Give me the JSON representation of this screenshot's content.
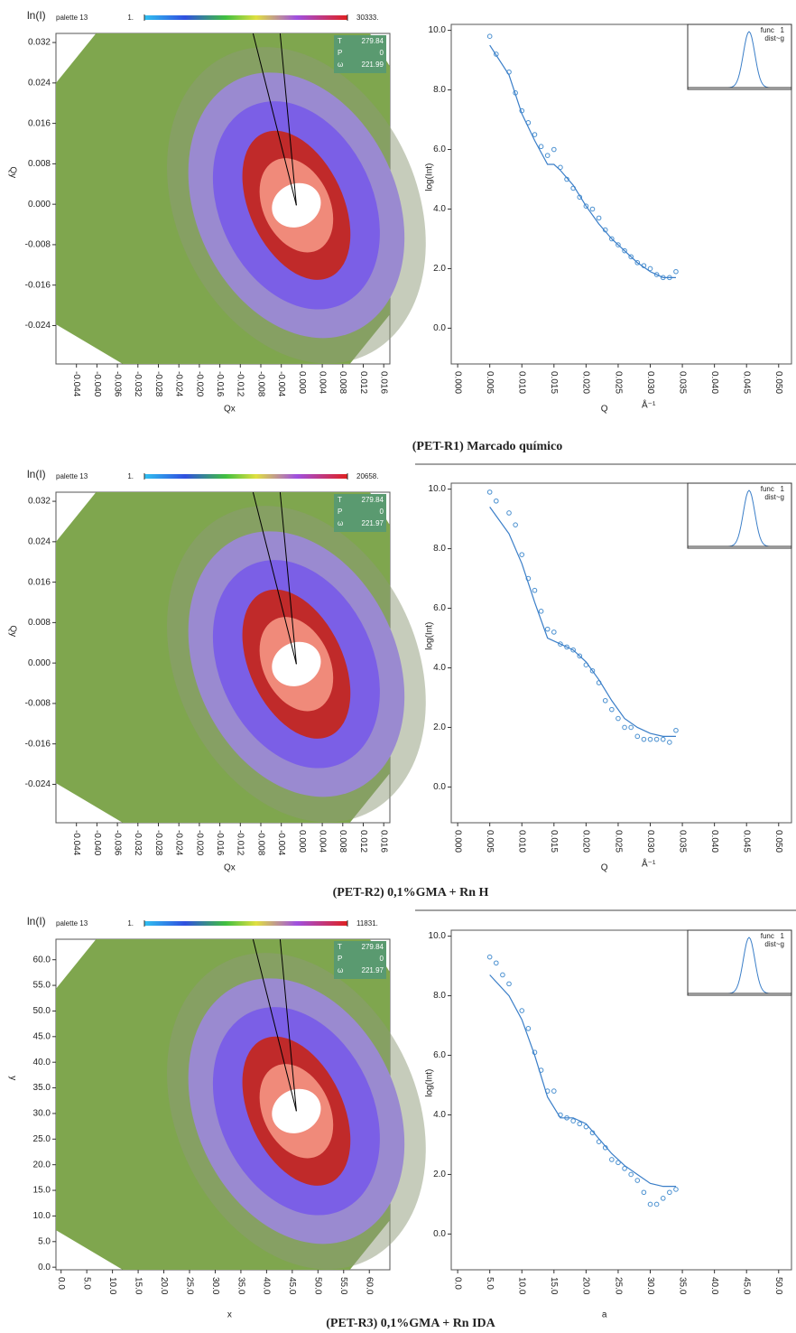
{
  "chart_data": [
    {
      "type": "heatmap",
      "title": "ln(I)",
      "palette_label": "palette 13",
      "colorbar_ticks": [
        {
          "value": 1,
          "label": "1."
        },
        {
          "value": 30333,
          "label": "30333."
        }
      ],
      "info": [
        {
          "label": "T",
          "value": 279.84
        },
        {
          "label": "P",
          "value": 0
        },
        {
          "label": "ω",
          "value": 221.99
        }
      ],
      "xlabel": "Qx",
      "ylabel": "Qy",
      "xlim": [
        -0.048,
        0.0172
      ],
      "ylim": [
        -0.0316,
        0.0338
      ],
      "xticks": [
        -0.044,
        {
          "value": -0.04,
          "label": "-0.040"
        },
        -0.036,
        -0.032,
        -0.028,
        -0.024,
        {
          "value": -0.02,
          "label": "-0.020"
        },
        -0.016,
        -0.012,
        -0.008,
        -0.004,
        {
          "value": 0,
          "label": "0.000"
        },
        0.004,
        0.008,
        0.012,
        0.016
      ],
      "yticks": [
        0.032,
        0.024,
        0.016,
        0.008,
        {
          "value": 0,
          "label": "0.000"
        },
        -0.008,
        -0.016,
        -0.024
      ]
    },
    {
      "type": "line",
      "ylabel": "log(Int)",
      "xlabel": "Q",
      "xunit": "Å⁻¹",
      "inset_text": [
        "func   1",
        "dist~g"
      ],
      "xlim": [
        -0.001,
        0.052
      ],
      "ylim": [
        -1.2,
        10.2
      ],
      "xticks": [
        {
          "value": 0,
          "label": "0.000"
        },
        0.005,
        {
          "value": 0.01,
          "label": "0.010"
        },
        0.015,
        {
          "value": 0.02,
          "label": "0.020"
        },
        0.025,
        {
          "value": 0.03,
          "label": "0.030"
        },
        0.035,
        {
          "value": 0.04,
          "label": "0.040"
        },
        0.045,
        {
          "value": 0.05,
          "label": "0.050"
        }
      ],
      "yticks": [
        {
          "value": 0,
          "label": "0.0"
        },
        {
          "value": 2,
          "label": "2.0"
        },
        {
          "value": 4,
          "label": "4.0"
        },
        {
          "value": 6,
          "label": "6.0"
        },
        {
          "value": 8,
          "label": "8.0"
        },
        {
          "value": 10,
          "label": "10.0"
        }
      ],
      "series": [
        {
          "style": "markers",
          "color": "#4a90d0",
          "x": [
            0.005,
            0.006,
            0.008,
            0.009,
            0.01,
            0.011,
            0.012,
            0.013,
            0.014,
            0.015,
            0.016,
            0.017,
            0.018,
            0.019,
            0.02,
            0.021,
            0.022,
            0.023,
            0.024,
            0.025,
            0.026,
            0.027,
            0.028,
            0.029,
            0.03,
            0.031,
            0.032,
            0.033,
            0.034
          ],
          "values": [
            9.8,
            9.2,
            8.6,
            7.9,
            7.3,
            6.9,
            6.5,
            6.1,
            5.8,
            6.0,
            5.4,
            5.0,
            4.7,
            4.4,
            4.1,
            4.0,
            3.7,
            3.3,
            3.0,
            2.8,
            2.6,
            2.4,
            2.2,
            2.1,
            2.0,
            1.8,
            1.7,
            1.7,
            1.9
          ]
        },
        {
          "style": "line",
          "color": "#3a7ec8",
          "x": [
            0.005,
            0.008,
            0.01,
            0.012,
            0.014,
            0.015,
            0.016,
            0.018,
            0.02,
            0.022,
            0.024,
            0.026,
            0.028,
            0.03,
            0.032,
            0.034
          ],
          "values": [
            9.5,
            8.5,
            7.2,
            6.3,
            5.5,
            5.5,
            5.3,
            4.8,
            4.1,
            3.5,
            3.0,
            2.6,
            2.2,
            1.9,
            1.7,
            1.7
          ]
        }
      ]
    },
    {
      "type": "heatmap",
      "title": "ln(I)",
      "palette_label": "palette 13",
      "colorbar_ticks": [
        {
          "value": 1,
          "label": "1."
        },
        {
          "value": 20658,
          "label": "20658."
        }
      ],
      "info": [
        {
          "label": "T",
          "value": 279.84
        },
        {
          "label": "P",
          "value": 0
        },
        {
          "label": "ω",
          "value": 221.97
        }
      ],
      "xlabel": "Qx",
      "ylabel": "Qy",
      "xlim": [
        -0.048,
        0.0172
      ],
      "ylim": [
        -0.0316,
        0.0338
      ],
      "xticks": [
        -0.044,
        {
          "value": -0.04,
          "label": "-0.040"
        },
        -0.036,
        -0.032,
        -0.028,
        -0.024,
        {
          "value": -0.02,
          "label": "-0.020"
        },
        -0.016,
        -0.012,
        -0.008,
        -0.004,
        {
          "value": 0,
          "label": "0.000"
        },
        0.004,
        0.008,
        0.012,
        0.016
      ],
      "yticks": [
        0.032,
        0.024,
        0.016,
        0.008,
        {
          "value": 0,
          "label": "0.000"
        },
        -0.008,
        -0.016,
        -0.024
      ]
    },
    {
      "type": "line",
      "ylabel": "log(Int)",
      "xlabel": "Q",
      "xunit": "Å⁻¹",
      "inset_text": [
        "func   1",
        "dist~g"
      ],
      "xlim": [
        -0.001,
        0.052
      ],
      "ylim": [
        -1.2,
        10.2
      ],
      "xticks": [
        {
          "value": 0,
          "label": "0.000"
        },
        0.005,
        {
          "value": 0.01,
          "label": "0.010"
        },
        0.015,
        {
          "value": 0.02,
          "label": "0.020"
        },
        0.025,
        {
          "value": 0.03,
          "label": "0.030"
        },
        0.035,
        {
          "value": 0.04,
          "label": "0.040"
        },
        0.045,
        {
          "value": 0.05,
          "label": "0.050"
        }
      ],
      "yticks": [
        {
          "value": 0,
          "label": "0.0"
        },
        {
          "value": 2,
          "label": "2.0"
        },
        {
          "value": 4,
          "label": "4.0"
        },
        {
          "value": 6,
          "label": "6.0"
        },
        {
          "value": 8,
          "label": "8.0"
        },
        {
          "value": 10,
          "label": "10.0"
        }
      ],
      "series": [
        {
          "style": "markers",
          "color": "#4a90d0",
          "x": [
            0.005,
            0.006,
            0.008,
            0.009,
            0.01,
            0.011,
            0.012,
            0.013,
            0.014,
            0.015,
            0.016,
            0.017,
            0.018,
            0.019,
            0.02,
            0.021,
            0.022,
            0.023,
            0.024,
            0.025,
            0.026,
            0.027,
            0.028,
            0.029,
            0.03,
            0.031,
            0.032,
            0.033,
            0.034
          ],
          "values": [
            9.9,
            9.6,
            9.2,
            8.8,
            7.8,
            7.0,
            6.6,
            5.9,
            5.3,
            5.2,
            4.8,
            4.7,
            4.6,
            4.4,
            4.1,
            3.9,
            3.5,
            2.9,
            2.6,
            2.3,
            2.0,
            2.0,
            1.7,
            1.6,
            1.6,
            1.6,
            1.6,
            1.5,
            1.9
          ]
        },
        {
          "style": "line",
          "color": "#3a7ec8",
          "x": [
            0.005,
            0.008,
            0.01,
            0.012,
            0.014,
            0.016,
            0.018,
            0.02,
            0.022,
            0.024,
            0.026,
            0.028,
            0.03,
            0.032,
            0.034
          ],
          "values": [
            9.4,
            8.5,
            7.5,
            6.2,
            5.0,
            4.8,
            4.6,
            4.2,
            3.6,
            2.9,
            2.3,
            2.0,
            1.8,
            1.7,
            1.7
          ]
        }
      ]
    },
    {
      "type": "heatmap",
      "title": "ln(I)",
      "palette_label": "palette 13",
      "colorbar_ticks": [
        {
          "value": 1,
          "label": "1."
        },
        {
          "value": 11831,
          "label": "11831."
        }
      ],
      "info": [
        {
          "label": "T",
          "value": 279.84
        },
        {
          "label": "P",
          "value": 0
        },
        {
          "label": "ω",
          "value": 221.97
        }
      ],
      "xlabel": "x",
      "ylabel": "y",
      "xlim": [
        -1,
        64
      ],
      "ylim": [
        -0.5,
        64
      ],
      "xticks": [
        {
          "value": 0,
          "label": "0.0"
        },
        {
          "value": 5,
          "label": "5.0"
        },
        {
          "value": 10,
          "label": "10.0"
        },
        {
          "value": 15,
          "label": "15.0"
        },
        {
          "value": 20,
          "label": "20.0"
        },
        {
          "value": 25,
          "label": "25.0"
        },
        {
          "value": 30,
          "label": "30.0"
        },
        {
          "value": 35,
          "label": "35.0"
        },
        {
          "value": 40,
          "label": "40.0"
        },
        {
          "value": 45,
          "label": "45.0"
        },
        {
          "value": 50,
          "label": "50.0"
        },
        {
          "value": 55,
          "label": "55.0"
        },
        {
          "value": 60,
          "label": "60.0"
        }
      ],
      "yticks": [
        {
          "value": 60,
          "label": "60.0"
        },
        {
          "value": 55,
          "label": "55.0"
        },
        {
          "value": 50,
          "label": "50.0"
        },
        {
          "value": 45,
          "label": "45.0"
        },
        {
          "value": 40,
          "label": "40.0"
        },
        {
          "value": 35,
          "label": "35.0"
        },
        {
          "value": 30,
          "label": "30.0"
        },
        {
          "value": 25,
          "label": "25.0"
        },
        {
          "value": 20,
          "label": "20.0"
        },
        {
          "value": 15,
          "label": "15.0"
        },
        {
          "value": 10,
          "label": "10.0"
        },
        {
          "value": 5,
          "label": "5.0"
        },
        {
          "value": 0,
          "label": "0.0"
        }
      ]
    },
    {
      "type": "line",
      "ylabel": "log(Int)",
      "xlabel": "a",
      "inset_text": [
        "func   1",
        "dist~g"
      ],
      "xlim": [
        -1,
        52
      ],
      "ylim": [
        -1.2,
        10.2
      ],
      "xticks": [
        {
          "value": 0,
          "label": "0.0"
        },
        {
          "value": 5,
          "label": "5.0"
        },
        {
          "value": 10,
          "label": "10.0"
        },
        {
          "value": 15,
          "label": "15.0"
        },
        {
          "value": 20,
          "label": "20.0"
        },
        {
          "value": 25,
          "label": "25.0"
        },
        {
          "value": 30,
          "label": "30.0"
        },
        {
          "value": 35,
          "label": "35.0"
        },
        {
          "value": 40,
          "label": "40.0"
        },
        {
          "value": 45,
          "label": "45.0"
        },
        {
          "value": 50,
          "label": "50.0"
        }
      ],
      "yticks": [
        {
          "value": 0,
          "label": "0.0"
        },
        {
          "value": 2,
          "label": "2.0"
        },
        {
          "value": 4,
          "label": "4.0"
        },
        {
          "value": 6,
          "label": "6.0"
        },
        {
          "value": 8,
          "label": "8.0"
        },
        {
          "value": 10,
          "label": "10.0"
        }
      ],
      "series": [
        {
          "style": "markers",
          "color": "#4a90d0",
          "x": [
            5,
            6,
            7,
            8,
            10,
            11,
            12,
            13,
            14,
            15,
            16,
            17,
            18,
            19,
            20,
            21,
            22,
            23,
            24,
            25,
            26,
            27,
            28,
            29,
            30,
            31,
            32,
            33,
            34
          ],
          "values": [
            9.3,
            9.1,
            8.7,
            8.4,
            7.5,
            6.9,
            6.1,
            5.5,
            4.8,
            4.8,
            4.0,
            3.9,
            3.8,
            3.7,
            3.6,
            3.4,
            3.1,
            2.9,
            2.5,
            2.4,
            2.2,
            2.0,
            1.8,
            1.4,
            1.0,
            1.0,
            1.2,
            1.4,
            1.5
          ]
        },
        {
          "style": "line",
          "color": "#3a7ec8",
          "x": [
            5,
            8,
            10,
            12,
            14,
            16,
            18,
            20,
            22,
            24,
            26,
            28,
            30,
            32,
            34
          ],
          "values": [
            8.7,
            8.0,
            7.2,
            6.0,
            4.6,
            3.9,
            3.9,
            3.7,
            3.2,
            2.7,
            2.3,
            2.0,
            1.7,
            1.6,
            1.6
          ]
        }
      ]
    }
  ],
  "captions": [
    "(PET-R1) Marcado químico",
    "(PET-R2) 0,1%GMA +  Rn H",
    "(PET-R3) 0,1%GMA +  Rn IDA"
  ]
}
